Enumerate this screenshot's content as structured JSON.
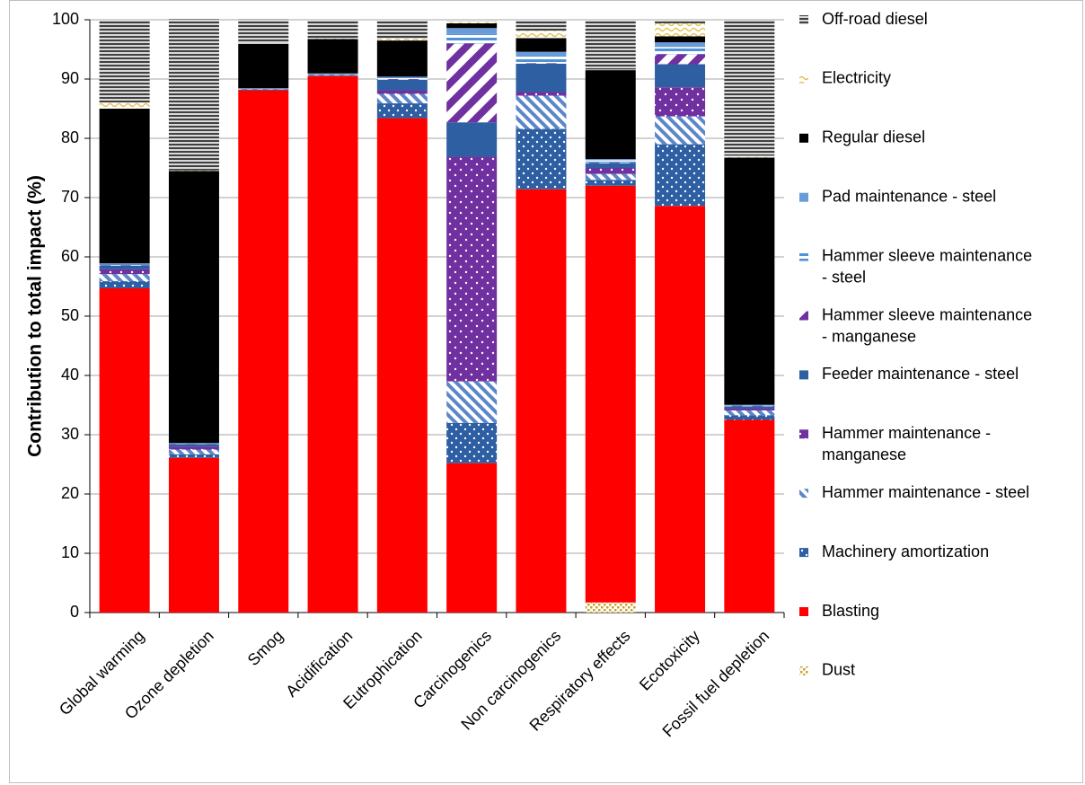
{
  "chart_data": {
    "type": "bar",
    "stacked": true,
    "ylabel": "Contribution to total impact (%)",
    "xlabel": "",
    "ylim": [
      0,
      100
    ],
    "yticks": [
      0,
      10,
      20,
      30,
      40,
      50,
      60,
      70,
      80,
      90,
      100
    ],
    "grid": true,
    "legend_position": "right",
    "categories": [
      "Global warming",
      "Ozone depletion",
      "Smog",
      "Acidification",
      "Eutrophication",
      "Carcinogenics",
      "Non carcinogenics",
      "Respiratory effects",
      "Ecotoxicity",
      "Fossil fuel depletion"
    ],
    "series": [
      {
        "name": "Dust",
        "color": "#c9a227",
        "pattern": "dust",
        "values": [
          0,
          0,
          0,
          0,
          0,
          0,
          0,
          1.7,
          0,
          0
        ]
      },
      {
        "name": "Blasting",
        "color": "#ff0000",
        "pattern": "solid",
        "values": [
          54.7,
          26.1,
          88.1,
          90.5,
          83.4,
          25.2,
          71.4,
          70.3,
          68.6,
          32.5
        ]
      },
      {
        "name": "Machinery amortization",
        "color": "#2e5fa3",
        "pattern": "dots",
        "values": [
          1.2,
          0.6,
          0.1,
          0.1,
          2.5,
          6.8,
          10.2,
          1.0,
          10.4,
          0.8
        ]
      },
      {
        "name": "Hammer maintenance - steel",
        "color": "#5b87c9",
        "pattern": "hatch",
        "values": [
          1.2,
          0.8,
          0.05,
          0.1,
          1.6,
          7.0,
          5.6,
          1.0,
          4.7,
          0.8
        ]
      },
      {
        "name": "Hammer maintenance - manganese",
        "color": "#7030a0",
        "pattern": "dots",
        "values": [
          0.8,
          0.5,
          0.05,
          0.05,
          0.6,
          37.9,
          0.6,
          1.0,
          4.9,
          0.3
        ]
      },
      {
        "name": "Feeder maintenance - steel",
        "color": "#2e5fa3",
        "pattern": "solid",
        "values": [
          0.6,
          0.4,
          0.05,
          0.1,
          1.8,
          5.8,
          4.8,
          0.8,
          3.9,
          0.4
        ]
      },
      {
        "name": "Hammer sleeve maintenance - manganese",
        "color": "#7030a0",
        "pattern": "diag",
        "values": [
          0.1,
          0.05,
          0,
          0,
          0.1,
          13.3,
          0.1,
          0.1,
          1.7,
          0.1
        ]
      },
      {
        "name": "Hammer sleeve maintenance - steel",
        "color": "#4f93d6",
        "pattern": "hstripe",
        "values": [
          0.2,
          0.1,
          0.05,
          0.05,
          0.3,
          1.6,
          1.3,
          0.4,
          1.2,
          0.1
        ]
      },
      {
        "name": "Pad maintenance - steel",
        "color": "#6a9bd8",
        "pattern": "solid",
        "values": [
          0.1,
          0.05,
          0.05,
          0.05,
          0.1,
          1.0,
          0.6,
          0.2,
          0.8,
          0.05
        ]
      },
      {
        "name": "Regular diesel",
        "color": "#000000",
        "pattern": "solid",
        "values": [
          26.1,
          45.9,
          7.5,
          5.8,
          6.1,
          0.8,
          2.3,
          15.0,
          1.0,
          41.7
        ]
      },
      {
        "name": "Electricity",
        "color": "#e5c35a",
        "pattern": "wave",
        "values": [
          1.0,
          0.1,
          0.1,
          0.1,
          0.3,
          0.3,
          1.2,
          0.1,
          2.2,
          0.3
        ]
      },
      {
        "name": "Off-road diesel",
        "color": "#404040",
        "pattern": "hstripe-gray",
        "values": [
          14.0,
          25.5,
          4.0,
          3.15,
          3.2,
          0.3,
          1.9,
          8.4,
          0.6,
          22.9
        ]
      }
    ]
  }
}
